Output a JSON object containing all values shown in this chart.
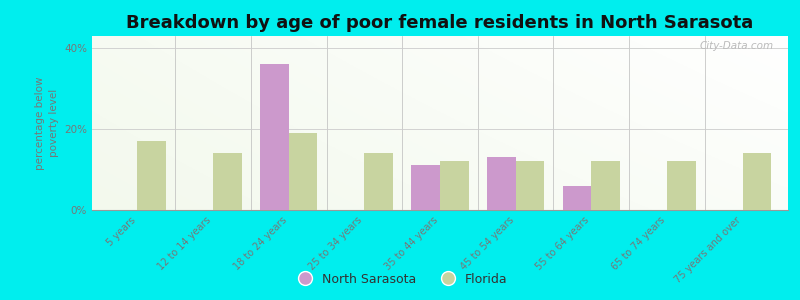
{
  "title": "Breakdown by age of poor female residents in North Sarasota",
  "categories": [
    "5 years",
    "12 to 14 years",
    "18 to 24 years",
    "25 to 34 years",
    "35 to 44 years",
    "45 to 54 years",
    "55 to 64 years",
    "65 to 74 years",
    "75 years and over"
  ],
  "north_sarasota": [
    0,
    0,
    36.0,
    0,
    11.0,
    13.0,
    6.0,
    0,
    0
  ],
  "florida": [
    17.0,
    14.0,
    19.0,
    14.0,
    12.0,
    12.0,
    12.0,
    12.0,
    14.0
  ],
  "ns_color": "#cc99cc",
  "fl_color": "#c8d4a0",
  "background_color": "#00eeee",
  "ylabel": "percentage below\npoverty level",
  "ylim": [
    0,
    43
  ],
  "yticks": [
    0,
    20,
    40
  ],
  "ytick_labels": [
    "0%",
    "20%",
    "40%"
  ],
  "title_fontsize": 13,
  "axis_label_fontsize": 7.5,
  "tick_fontsize": 7.5,
  "legend_labels": [
    "North Sarasota",
    "Florida"
  ],
  "watermark": "City-Data.com",
  "bar_width": 0.38
}
